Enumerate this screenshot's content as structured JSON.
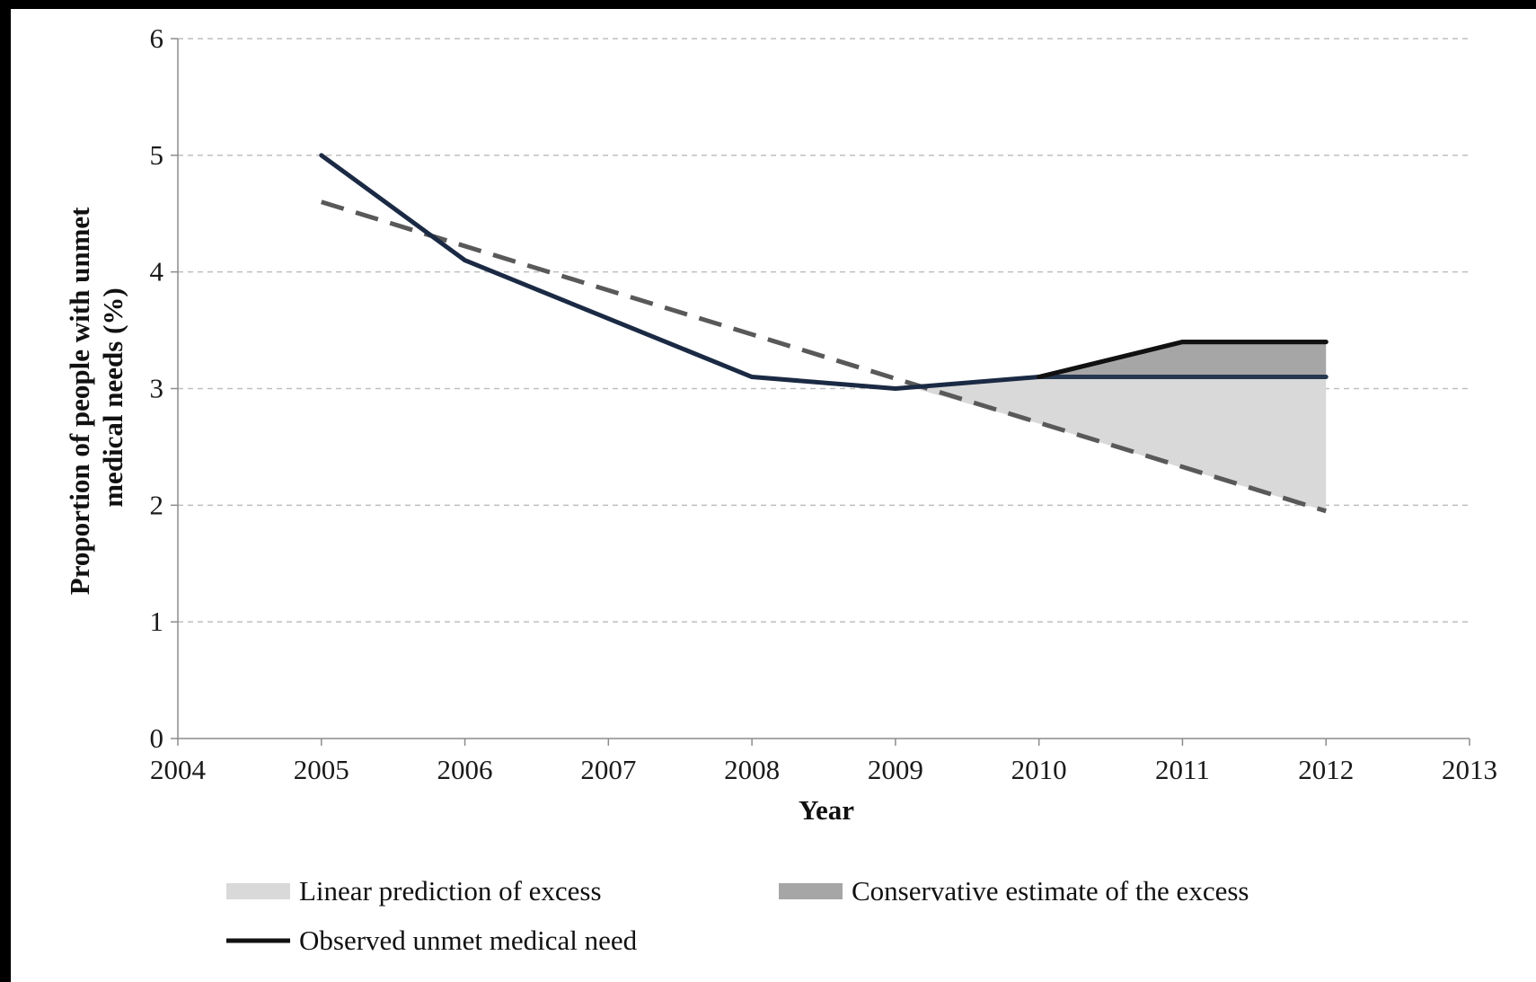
{
  "chart_data": {
    "type": "line",
    "title": "",
    "xlabel": "Year",
    "ylabel": "Proportion of people with unmet medical needs (%)",
    "ylabel_lines": [
      "Proportion of people with unmet",
      "medical needs (%)"
    ],
    "xlim": [
      2004,
      2013
    ],
    "ylim": [
      0,
      6
    ],
    "x_ticks": [
      2004,
      2005,
      2006,
      2007,
      2008,
      2009,
      2010,
      2011,
      2012,
      2013
    ],
    "y_ticks": [
      0,
      1,
      2,
      3,
      4,
      5,
      6
    ],
    "grid": "horizontal dashed",
    "legend_position": "bottom",
    "series": [
      {
        "name": "Observed unmet medical need",
        "style": "solid",
        "color": "#1b2a44",
        "x": [
          2005,
          2006,
          2008,
          2009,
          2010,
          2011,
          2012
        ],
        "y": [
          5.0,
          4.1,
          3.1,
          3.0,
          3.1,
          3.4,
          3.4
        ]
      },
      {
        "name": "",
        "style": "solid",
        "color": "#26384f",
        "x": [
          2010,
          2011,
          2012
        ],
        "y": [
          3.1,
          3.1,
          3.1
        ]
      },
      {
        "name": "",
        "style": "dashed",
        "color": "#595959",
        "x": [
          2005,
          2012
        ],
        "y": [
          4.6,
          1.95
        ]
      }
    ],
    "areas": [
      {
        "name": "Linear prediction of excess",
        "color": "#d9d9d9",
        "x": [
          2009.05,
          2010,
          2011,
          2012
        ],
        "upper": [
          3.03,
          3.1,
          3.1,
          3.1
        ],
        "lower": [
          3.03,
          2.7,
          2.32,
          1.95
        ]
      },
      {
        "name": "Conservative estimate of the excess",
        "color": "#a6a6a6",
        "x": [
          2010,
          2011,
          2012
        ],
        "upper": [
          3.1,
          3.4,
          3.4
        ],
        "lower": [
          3.1,
          3.1,
          3.1
        ]
      }
    ],
    "legend": [
      {
        "label": "Linear prediction of excess",
        "kind": "area",
        "color": "#d9d9d9"
      },
      {
        "label": "Conservative estimate of the excess",
        "kind": "area",
        "color": "#a6a6a6"
      },
      {
        "label": "Observed unmet medical need",
        "kind": "line",
        "color": "#111111"
      }
    ],
    "colors": {
      "grid": "#bfbfbf",
      "axis": "#8c8c8c",
      "observed_line": "#1b2a44",
      "upper_line": "#111111"
    }
  }
}
